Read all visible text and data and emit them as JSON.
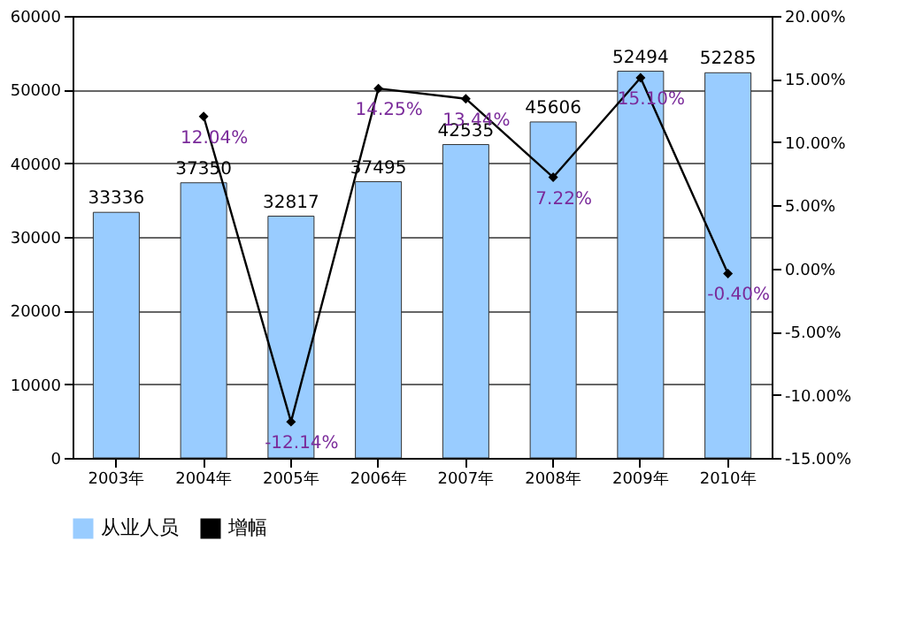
{
  "chart_data": {
    "type": "bar",
    "categories": [
      "2003年",
      "2004年",
      "2005年",
      "2006年",
      "2007年",
      "2008年",
      "2009年",
      "2010年"
    ],
    "series": [
      {
        "name": "从业人员",
        "color": "#99ccff",
        "values": [
          33336,
          37350,
          32817,
          37495,
          42535,
          45606,
          52494,
          52285
        ],
        "data_labels": true
      },
      {
        "name": "增幅",
        "type": "line",
        "axis": "y2",
        "color": "#000000",
        "marker": "diamond",
        "values": [
          null,
          12.04,
          -12.14,
          14.25,
          13.44,
          7.22,
          15.1,
          -0.4
        ],
        "value_labels": [
          null,
          "12.04%",
          "-12.14%",
          "14.25%",
          "13.44%",
          "7.22%",
          "15.10%",
          "-0.40%"
        ]
      }
    ],
    "ylim": [
      0,
      60000
    ],
    "yticks": [
      0,
      10000,
      20000,
      30000,
      40000,
      50000,
      60000
    ],
    "y2lim": [
      -15,
      20
    ],
    "y2ticks": [
      {
        "value": -15,
        "label": "-15.00%"
      },
      {
        "value": -10,
        "label": "-10.00%"
      },
      {
        "value": -5,
        "label": "-5.00%"
      },
      {
        "value": 0,
        "label": "0.00%"
      },
      {
        "value": 5,
        "label": "5.00%"
      },
      {
        "value": 10,
        "label": "10.00%"
      },
      {
        "value": 15,
        "label": "15.00%"
      },
      {
        "value": 20,
        "label": "20.00%"
      }
    ],
    "grid": "y",
    "legend": "bottom"
  }
}
